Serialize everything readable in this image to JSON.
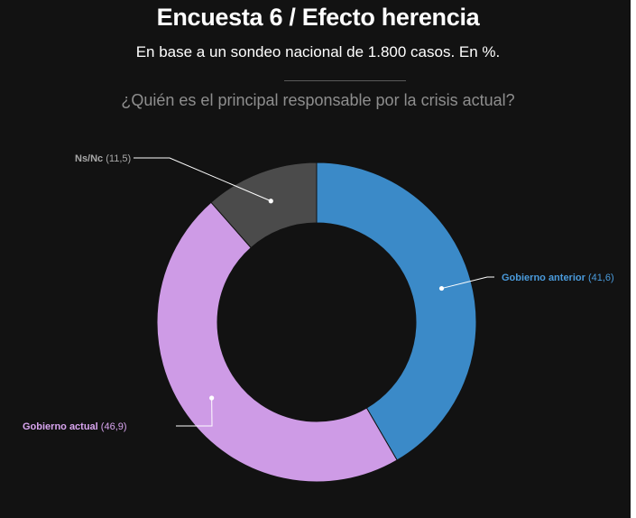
{
  "title": "Encuesta 6 / Efecto herencia",
  "subtitle": "En base a un sondeo nacional de 1.800 casos. En %.",
  "question": "¿Quién es el principal responsable por la crisis actual?",
  "chart_data": {
    "type": "pie",
    "donut": true,
    "title": "Encuesta 6 / Efecto herencia",
    "subtitle": "En base a un sondeo nacional de 1.800 casos. En %.",
    "slices": [
      {
        "label": "Gobierno anterior",
        "value_label": "(41,6)",
        "value": 41.6,
        "color": "#3b8ac8",
        "label_color": "#4a9bdc"
      },
      {
        "label": "Gobierno actual",
        "value_label": "(46,9)",
        "value": 46.9,
        "color": "#ce9be6",
        "label_color": "#d9a5f0"
      },
      {
        "label": "Ns/Nc",
        "value_label": "(11,5)",
        "value": 11.5,
        "color": "#4b4b4b",
        "label_color": "#a8a8a8"
      }
    ]
  }
}
